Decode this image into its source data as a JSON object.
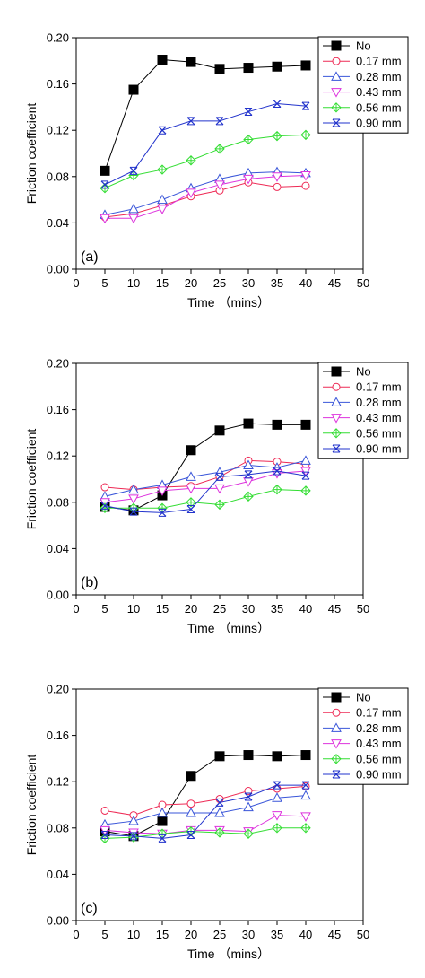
{
  "chart_data": [
    {
      "type": "line",
      "panel_label": "(a)",
      "xlabel": "Time （mins）",
      "ylabel": "Friction coefficient",
      "xlim": [
        0,
        50
      ],
      "ylim": [
        0.0,
        0.2
      ],
      "xticks": [
        0,
        5,
        10,
        15,
        20,
        25,
        30,
        35,
        40,
        45,
        50
      ],
      "yticks": [
        0.0,
        0.04,
        0.08,
        0.12,
        0.16,
        0.2
      ],
      "ytick_labels": [
        "0.00",
        "0.04",
        "0.08",
        "0.12",
        "0.16",
        "0.20"
      ],
      "legend_position": "top-right",
      "grid": false,
      "x": [
        5,
        10,
        15,
        20,
        25,
        30,
        35,
        40
      ],
      "series": [
        {
          "name": "No",
          "color": "#000000",
          "marker": "square-filled",
          "values": [
            0.085,
            0.155,
            0.181,
            0.179,
            0.173,
            0.174,
            0.175,
            0.176
          ]
        },
        {
          "name": "0.17 mm",
          "color": "#ee2a55",
          "marker": "circle-open",
          "values": [
            0.045,
            0.048,
            0.055,
            0.063,
            0.068,
            0.075,
            0.071,
            0.072
          ]
        },
        {
          "name": "0.28 mm",
          "color": "#3a56d9",
          "marker": "triangle-up-open",
          "values": [
            0.047,
            0.052,
            0.06,
            0.07,
            0.078,
            0.083,
            0.084,
            0.083
          ]
        },
        {
          "name": "0.43 mm",
          "color": "#dd33dd",
          "marker": "triangle-down-open",
          "values": [
            0.044,
            0.044,
            0.052,
            0.066,
            0.073,
            0.078,
            0.08,
            0.081
          ]
        },
        {
          "name": "0.56 mm",
          "color": "#33dd33",
          "marker": "diamond-cross",
          "values": [
            0.07,
            0.081,
            0.086,
            0.094,
            0.104,
            0.112,
            0.115,
            0.116
          ]
        },
        {
          "name": "0.90 mm",
          "color": "#2233cc",
          "marker": "x-box",
          "values": [
            0.073,
            0.085,
            0.12,
            0.128,
            0.128,
            0.136,
            0.143,
            0.141
          ]
        }
      ]
    },
    {
      "type": "line",
      "panel_label": "(b)",
      "xlabel": "Time （mins）",
      "ylabel": "Friction coefficient",
      "xlim": [
        0,
        50
      ],
      "ylim": [
        0.0,
        0.2
      ],
      "xticks": [
        0,
        5,
        10,
        15,
        20,
        25,
        30,
        35,
        40,
        45,
        50
      ],
      "yticks": [
        0.0,
        0.04,
        0.08,
        0.12,
        0.16,
        0.2
      ],
      "ytick_labels": [
        "0.00",
        "0.04",
        "0.08",
        "0.12",
        "0.16",
        "0.20"
      ],
      "legend_position": "top-right",
      "grid": false,
      "x": [
        5,
        10,
        15,
        20,
        25,
        30,
        35,
        40
      ],
      "series": [
        {
          "name": "No",
          "color": "#000000",
          "marker": "square-filled",
          "values": [
            0.076,
            0.073,
            0.086,
            0.125,
            0.142,
            0.148,
            0.147,
            0.147
          ]
        },
        {
          "name": "0.17 mm",
          "color": "#ee2a55",
          "marker": "circle-open",
          "values": [
            0.093,
            0.091,
            0.093,
            0.094,
            0.102,
            0.116,
            0.115,
            0.113
          ]
        },
        {
          "name": "0.28 mm",
          "color": "#3a56d9",
          "marker": "triangle-up-open",
          "values": [
            0.085,
            0.091,
            0.095,
            0.102,
            0.106,
            0.112,
            0.11,
            0.116
          ]
        },
        {
          "name": "0.43 mm",
          "color": "#dd33dd",
          "marker": "triangle-down-open",
          "values": [
            0.08,
            0.083,
            0.09,
            0.092,
            0.092,
            0.098,
            0.105,
            0.107
          ]
        },
        {
          "name": "0.56 mm",
          "color": "#33dd33",
          "marker": "diamond-cross",
          "values": [
            0.075,
            0.075,
            0.075,
            0.08,
            0.078,
            0.085,
            0.091,
            0.09
          ]
        },
        {
          "name": "0.90 mm",
          "color": "#2233cc",
          "marker": "x-box",
          "values": [
            0.077,
            0.072,
            0.071,
            0.074,
            0.102,
            0.104,
            0.107,
            0.103
          ]
        }
      ]
    },
    {
      "type": "line",
      "panel_label": "(c)",
      "xlabel": "Time （mins）",
      "ylabel": "Friction coefficient",
      "xlim": [
        0,
        50
      ],
      "ylim": [
        0.0,
        0.2
      ],
      "xticks": [
        0,
        5,
        10,
        15,
        20,
        25,
        30,
        35,
        40,
        45,
        50
      ],
      "yticks": [
        0.0,
        0.04,
        0.08,
        0.12,
        0.16,
        0.2
      ],
      "ytick_labels": [
        "0.00",
        "0.04",
        "0.08",
        "0.12",
        "0.16",
        "0.20"
      ],
      "legend_position": "top-right",
      "grid": false,
      "x": [
        5,
        10,
        15,
        20,
        25,
        30,
        35,
        40
      ],
      "series": [
        {
          "name": "No",
          "color": "#000000",
          "marker": "square-filled",
          "values": [
            0.077,
            0.073,
            0.086,
            0.125,
            0.142,
            0.143,
            0.142,
            0.143
          ]
        },
        {
          "name": "0.17 mm",
          "color": "#ee2a55",
          "marker": "circle-open",
          "values": [
            0.095,
            0.091,
            0.1,
            0.101,
            0.105,
            0.112,
            0.114,
            0.116
          ]
        },
        {
          "name": "0.28 mm",
          "color": "#3a56d9",
          "marker": "triangle-up-open",
          "values": [
            0.083,
            0.086,
            0.093,
            0.093,
            0.093,
            0.098,
            0.106,
            0.108
          ]
        },
        {
          "name": "0.43 mm",
          "color": "#dd33dd",
          "marker": "triangle-down-open",
          "values": [
            0.078,
            0.076,
            0.075,
            0.078,
            0.078,
            0.077,
            0.091,
            0.09
          ]
        },
        {
          "name": "0.56 mm",
          "color": "#33dd33",
          "marker": "diamond-cross",
          "values": [
            0.071,
            0.072,
            0.075,
            0.077,
            0.076,
            0.075,
            0.08,
            0.08
          ]
        },
        {
          "name": "0.90 mm",
          "color": "#2233cc",
          "marker": "x-box",
          "values": [
            0.074,
            0.073,
            0.071,
            0.074,
            0.102,
            0.107,
            0.117,
            0.117
          ]
        }
      ]
    }
  ]
}
